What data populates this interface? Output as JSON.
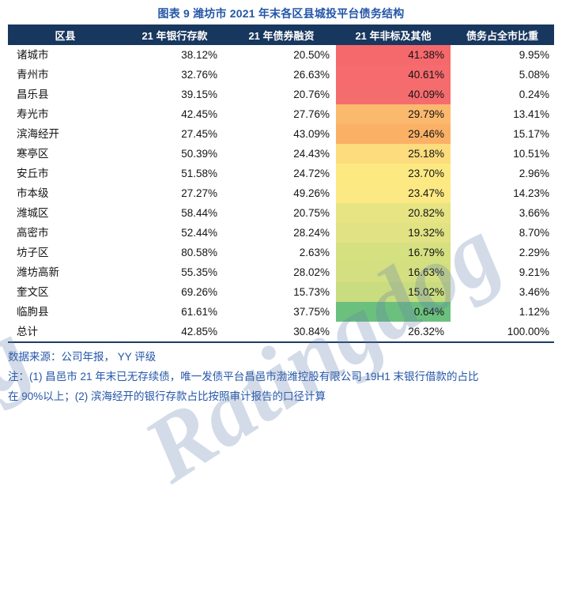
{
  "title": "图表 9 潍坊市 2021 年末各区县城投平台债务结构",
  "watermark": {
    "text": "Ratingdog"
  },
  "colors": {
    "header_bg": "#17375E",
    "accent_blue": "#2456A8",
    "table_border": "#1F3B66",
    "scale_high_red": "#F5696D",
    "scale_mid_yellow": "#FDE982",
    "scale_low_green": "#6CC07D"
  },
  "table": {
    "columns": [
      "区县",
      "21 年银行存款",
      "21 年债券融资",
      "21 年非标及其他",
      "债务占全市比重"
    ],
    "rows": [
      {
        "region": "诸城市",
        "bank": "38.12%",
        "bond": "20.50%",
        "nonstd": "41.38%",
        "share": "9.95%",
        "color": "#F5696D"
      },
      {
        "region": "青州市",
        "bank": "32.76%",
        "bond": "26.63%",
        "nonstd": "40.61%",
        "share": "5.08%",
        "color": "#F56B6E"
      },
      {
        "region": "昌乐县",
        "bank": "39.15%",
        "bond": "20.76%",
        "nonstd": "40.09%",
        "share": "0.24%",
        "color": "#F56C6F"
      },
      {
        "region": "寿光市",
        "bank": "42.45%",
        "bond": "27.76%",
        "nonstd": "29.79%",
        "share": "13.41%",
        "color": "#FBB96D"
      },
      {
        "region": "滨海经开",
        "bank": "27.45%",
        "bond": "43.09%",
        "nonstd": "29.46%",
        "share": "15.17%",
        "color": "#FAB166"
      },
      {
        "region": "寒亭区",
        "bank": "50.39%",
        "bond": "24.43%",
        "nonstd": "25.18%",
        "share": "10.51%",
        "color": "#FCDC7D"
      },
      {
        "region": "安丘市",
        "bank": "51.58%",
        "bond": "24.72%",
        "nonstd": "23.70%",
        "share": "2.96%",
        "color": "#FDE982"
      },
      {
        "region": "市本级",
        "bank": "27.27%",
        "bond": "49.26%",
        "nonstd": "23.47%",
        "share": "14.23%",
        "color": "#FCE983"
      },
      {
        "region": "潍城区",
        "bank": "58.44%",
        "bond": "20.75%",
        "nonstd": "20.82%",
        "share": "3.66%",
        "color": "#E6E483"
      },
      {
        "region": "高密市",
        "bank": "52.44%",
        "bond": "28.24%",
        "nonstd": "19.32%",
        "share": "8.70%",
        "color": "#E0E283"
      },
      {
        "region": "坊子区",
        "bank": "80.58%",
        "bond": "2.63%",
        "nonstd": "16.79%",
        "share": "2.29%",
        "color": "#D5E081"
      },
      {
        "region": "潍坊高新",
        "bank": "55.35%",
        "bond": "28.02%",
        "nonstd": "16.63%",
        "share": "9.21%",
        "color": "#D3DF81"
      },
      {
        "region": "奎文区",
        "bank": "69.26%",
        "bond": "15.73%",
        "nonstd": "15.02%",
        "share": "3.46%",
        "color": "#C9DC80"
      },
      {
        "region": "临朐县",
        "bank": "61.61%",
        "bond": "37.75%",
        "nonstd": "0.64%",
        "share": "1.12%",
        "color": "#6CC07D"
      },
      {
        "region": "总计",
        "bank": "42.85%",
        "bond": "30.84%",
        "nonstd": "26.32%",
        "share": "100.00%",
        "color": null
      }
    ]
  },
  "footer": {
    "source": "数据来源：公司年报， YY 评级",
    "note1": "注：(1) 昌邑市 21 年末已无存续债，唯一发债平台昌邑市渤潍控股有限公司 19H1 末银行借款的占比",
    "note2": "在 90%以上；(2) 滨海经开的银行存款占比按照审计报告的口径计算"
  },
  "chart_data": {
    "type": "table",
    "title": "图表 9 潍坊市 2021 年末各区县城投平台债务结构",
    "columns": [
      "区县",
      "21 年银行存款",
      "21 年债券融资",
      "21 年非标及其他",
      "债务占全市比重"
    ],
    "categories": [
      "诸城市",
      "青州市",
      "昌乐县",
      "寿光市",
      "滨海经开",
      "寒亭区",
      "安丘市",
      "市本级",
      "潍城区",
      "高密市",
      "坊子区",
      "潍坊高新",
      "奎文区",
      "临朐县",
      "总计"
    ],
    "series": [
      {
        "name": "21 年银行存款",
        "values": [
          38.12,
          32.76,
          39.15,
          42.45,
          27.45,
          50.39,
          51.58,
          27.27,
          58.44,
          52.44,
          80.58,
          55.35,
          69.26,
          61.61,
          42.85
        ]
      },
      {
        "name": "21 年债券融资",
        "values": [
          20.5,
          26.63,
          20.76,
          27.76,
          43.09,
          24.43,
          24.72,
          49.26,
          20.75,
          28.24,
          2.63,
          28.02,
          15.73,
          37.75,
          30.84
        ]
      },
      {
        "name": "21 年非标及其他",
        "values": [
          41.38,
          40.61,
          40.09,
          29.79,
          29.46,
          25.18,
          23.7,
          23.47,
          20.82,
          19.32,
          16.79,
          16.63,
          15.02,
          0.64,
          26.32
        ]
      },
      {
        "name": "债务占全市比重",
        "values": [
          9.95,
          5.08,
          0.24,
          13.41,
          15.17,
          10.51,
          2.96,
          14.23,
          3.66,
          8.7,
          2.29,
          9.21,
          3.46,
          1.12,
          100.0
        ]
      }
    ],
    "units": "%",
    "conditional_formatting": "column 21年非标及其他 uses red-yellow-green 3-color scale (high 41.38%=red #F5696D, mid≈23.6%=yellow #FDE982, low 0.64%=green #6CC07D); 总计 row not shaded",
    "source": "数据来源：公司年报， YY 评级",
    "notes": [
      "注：(1) 昌邑市 21 年末已无存续债，唯一发债平台昌邑市渤潍控股有限公司 19H1 末银行借款的占比在 90%以上；",
      "(2) 滨海经开的银行存款占比按照审计报告的口径计算"
    ]
  }
}
